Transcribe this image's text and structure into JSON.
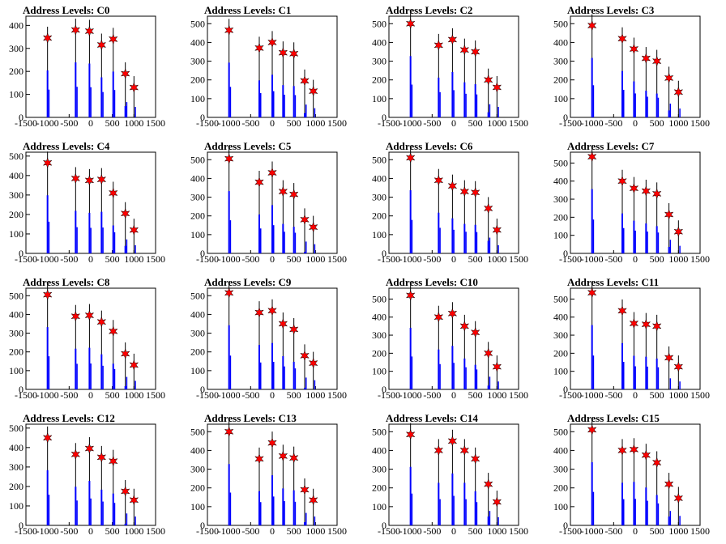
{
  "figure": {
    "title_prefix": "Address Levels: "
  },
  "style": {
    "bar_color": "#0000ff",
    "peak_line_color": "#000000",
    "marker_fill": "#ff0000",
    "marker_stroke": "#000000",
    "frame_color": "#000000",
    "background": "#ffffff"
  },
  "chart_data": [
    {
      "title": "Address Levels: C0",
      "type": "bar",
      "xlim": [
        -1500,
        1500
      ],
      "ylim": [
        0,
        440
      ],
      "xticks": [
        "-1500",
        "-1000",
        "-500",
        "0",
        "500",
        "1000",
        "1500"
      ],
      "yticks": [
        0,
        100,
        200,
        300,
        400
      ],
      "peak_x": [
        -1000,
        -350,
        -30,
        250,
        520,
        800,
        1000
      ],
      "peak_y": [
        345,
        380,
        375,
        315,
        340,
        190,
        130
      ]
    },
    {
      "title": "Address Levels: C1",
      "type": "bar",
      "xlim": [
        -1500,
        1500
      ],
      "ylim": [
        0,
        540
      ],
      "xticks": [
        "-1500",
        "-1000",
        "-500",
        "0",
        "500",
        "1000",
        "1500"
      ],
      "yticks": [
        0,
        100,
        200,
        300,
        400,
        500
      ],
      "peak_x": [
        -1000,
        -300,
        0,
        250,
        500,
        750,
        950
      ],
      "peak_y": [
        465,
        370,
        400,
        345,
        340,
        195,
        140
      ]
    },
    {
      "title": "Address Levels: C2",
      "type": "bar",
      "xlim": [
        -1500,
        1500
      ],
      "ylim": [
        0,
        540
      ],
      "xticks": [
        "-1500",
        "-1000",
        "-500",
        "0",
        "500",
        "1000",
        "1500"
      ],
      "yticks": [
        0,
        100,
        200,
        300,
        400,
        500
      ],
      "peak_x": [
        -1000,
        -350,
        -30,
        250,
        500,
        800,
        1000
      ],
      "peak_y": [
        500,
        385,
        415,
        360,
        350,
        200,
        160
      ]
    },
    {
      "title": "Address Levels: C3",
      "type": "bar",
      "xlim": [
        -1500,
        1500
      ],
      "ylim": [
        0,
        540
      ],
      "xticks": [
        "-1500",
        "-1000",
        "-500",
        "0",
        "500",
        "1000",
        "1500"
      ],
      "yticks": [
        0,
        100,
        200,
        300,
        400,
        500
      ],
      "peak_x": [
        -1000,
        -300,
        -30,
        250,
        500,
        780,
        1000
      ],
      "peak_y": [
        490,
        420,
        365,
        315,
        300,
        210,
        135
      ]
    },
    {
      "title": "Address Levels: C4",
      "type": "bar",
      "xlim": [
        -1500,
        1500
      ],
      "ylim": [
        0,
        520
      ],
      "xticks": [
        "-1500",
        "-1000",
        "-500",
        "0",
        "500",
        "1000",
        "1500"
      ],
      "yticks": [
        0,
        100,
        200,
        300,
        400,
        500
      ],
      "peak_x": [
        -1000,
        -350,
        -30,
        250,
        520,
        800,
        1000
      ],
      "peak_y": [
        465,
        385,
        375,
        380,
        310,
        205,
        120
      ]
    },
    {
      "title": "Address Levels: C5",
      "type": "bar",
      "xlim": [
        -1500,
        1500
      ],
      "ylim": [
        0,
        540
      ],
      "xticks": [
        "-1500",
        "-1000",
        "-500",
        "0",
        "500",
        "1000",
        "1500"
      ],
      "yticks": [
        0,
        100,
        200,
        300,
        400,
        500
      ],
      "peak_x": [
        -1000,
        -300,
        0,
        250,
        500,
        750,
        950
      ],
      "peak_y": [
        505,
        380,
        430,
        330,
        315,
        180,
        140
      ]
    },
    {
      "title": "Address Levels: C6",
      "type": "bar",
      "xlim": [
        -1500,
        1500
      ],
      "ylim": [
        0,
        540
      ],
      "xticks": [
        "-1500",
        "-1000",
        "-500",
        "0",
        "500",
        "1000",
        "1500"
      ],
      "yticks": [
        0,
        100,
        200,
        300,
        400,
        500
      ],
      "peak_x": [
        -1000,
        -350,
        -30,
        250,
        500,
        800,
        1000
      ],
      "peak_y": [
        510,
        390,
        360,
        330,
        325,
        240,
        125
      ]
    },
    {
      "title": "Address Levels: C7",
      "type": "bar",
      "xlim": [
        -1500,
        1500
      ],
      "ylim": [
        0,
        560
      ],
      "xticks": [
        "-1500",
        "-1000",
        "-500",
        "0",
        "500",
        "1000",
        "1500"
      ],
      "yticks": [
        0,
        100,
        200,
        300,
        400,
        500
      ],
      "peak_x": [
        -1000,
        -300,
        -30,
        250,
        500,
        780,
        1000
      ],
      "peak_y": [
        535,
        400,
        360,
        345,
        330,
        215,
        120
      ]
    },
    {
      "title": "Address Levels: C8",
      "type": "bar",
      "xlim": [
        -1500,
        1500
      ],
      "ylim": [
        0,
        540
      ],
      "xticks": [
        "-1500",
        "-1000",
        "-500",
        "0",
        "500",
        "1000",
        "1500"
      ],
      "yticks": [
        0,
        100,
        200,
        300,
        400,
        500
      ],
      "peak_x": [
        -1000,
        -350,
        -30,
        250,
        520,
        800,
        1000
      ],
      "peak_y": [
        505,
        390,
        395,
        360,
        310,
        190,
        130
      ]
    },
    {
      "title": "Address Levels: C9",
      "type": "bar",
      "xlim": [
        -1500,
        1500
      ],
      "ylim": [
        0,
        540
      ],
      "xticks": [
        "-1500",
        "-1000",
        "-500",
        "0",
        "500",
        "1000",
        "1500"
      ],
      "yticks": [
        0,
        100,
        200,
        300,
        400,
        500
      ],
      "peak_x": [
        -1000,
        -300,
        0,
        250,
        500,
        750,
        950
      ],
      "peak_y": [
        515,
        410,
        420,
        350,
        320,
        180,
        140
      ]
    },
    {
      "title": "Address Levels: C10",
      "type": "bar",
      "xlim": [
        -1500,
        1500
      ],
      "ylim": [
        0,
        560
      ],
      "xticks": [
        "-1500",
        "-1000",
        "-500",
        "0",
        "500",
        "1000",
        "1500"
      ],
      "yticks": [
        0,
        100,
        200,
        300,
        400,
        500
      ],
      "peak_x": [
        -1000,
        -350,
        -30,
        250,
        500,
        800,
        1000
      ],
      "peak_y": [
        520,
        400,
        420,
        350,
        315,
        200,
        125
      ]
    },
    {
      "title": "Address Levels: C11",
      "type": "bar",
      "xlim": [
        -1500,
        1500
      ],
      "ylim": [
        0,
        560
      ],
      "xticks": [
        "-1500",
        "-1000",
        "-500",
        "0",
        "500",
        "1000",
        "1500"
      ],
      "yticks": [
        0,
        100,
        200,
        300,
        400,
        500
      ],
      "peak_x": [
        -1000,
        -300,
        -30,
        250,
        500,
        780,
        1000
      ],
      "peak_y": [
        535,
        435,
        365,
        360,
        350,
        175,
        125
      ]
    },
    {
      "title": "Address Levels: C12",
      "type": "bar",
      "xlim": [
        -1500,
        1500
      ],
      "ylim": [
        0,
        520
      ],
      "xticks": [
        "-1500",
        "-1000",
        "-500",
        "0",
        "500",
        "1000",
        "1500"
      ],
      "yticks": [
        0,
        100,
        200,
        300,
        400,
        500
      ],
      "peak_x": [
        -1000,
        -350,
        -30,
        250,
        520,
        800,
        1000
      ],
      "peak_y": [
        450,
        365,
        395,
        350,
        330,
        175,
        130
      ]
    },
    {
      "title": "Address Levels: C13",
      "type": "bar",
      "xlim": [
        -1500,
        1500
      ],
      "ylim": [
        0,
        540
      ],
      "xticks": [
        "-1500",
        "-1000",
        "-500",
        "0",
        "500",
        "1000",
        "1500"
      ],
      "yticks": [
        0,
        100,
        200,
        300,
        400,
        500
      ],
      "peak_x": [
        -1000,
        -300,
        0,
        250,
        500,
        750,
        950
      ],
      "peak_y": [
        500,
        355,
        440,
        370,
        360,
        190,
        135
      ]
    },
    {
      "title": "Address Levels: C14",
      "type": "bar",
      "xlim": [
        -1500,
        1500
      ],
      "ylim": [
        0,
        540
      ],
      "xticks": [
        "-1500",
        "-1000",
        "-500",
        "0",
        "500",
        "1000",
        "1500"
      ],
      "yticks": [
        0,
        100,
        200,
        300,
        400,
        500
      ],
      "peak_x": [
        -1000,
        -350,
        -30,
        250,
        500,
        800,
        1000
      ],
      "peak_y": [
        485,
        400,
        450,
        400,
        355,
        220,
        125
      ]
    },
    {
      "title": "Address Levels: C15",
      "type": "bar",
      "xlim": [
        -1500,
        1500
      ],
      "ylim": [
        0,
        540
      ],
      "xticks": [
        "-1500",
        "-1000",
        "-500",
        "0",
        "500",
        "1000",
        "1500"
      ],
      "yticks": [
        0,
        100,
        200,
        300,
        400,
        500
      ],
      "peak_x": [
        -1000,
        -300,
        -30,
        250,
        500,
        780,
        1000
      ],
      "peak_y": [
        510,
        400,
        405,
        375,
        335,
        220,
        145
      ]
    }
  ]
}
